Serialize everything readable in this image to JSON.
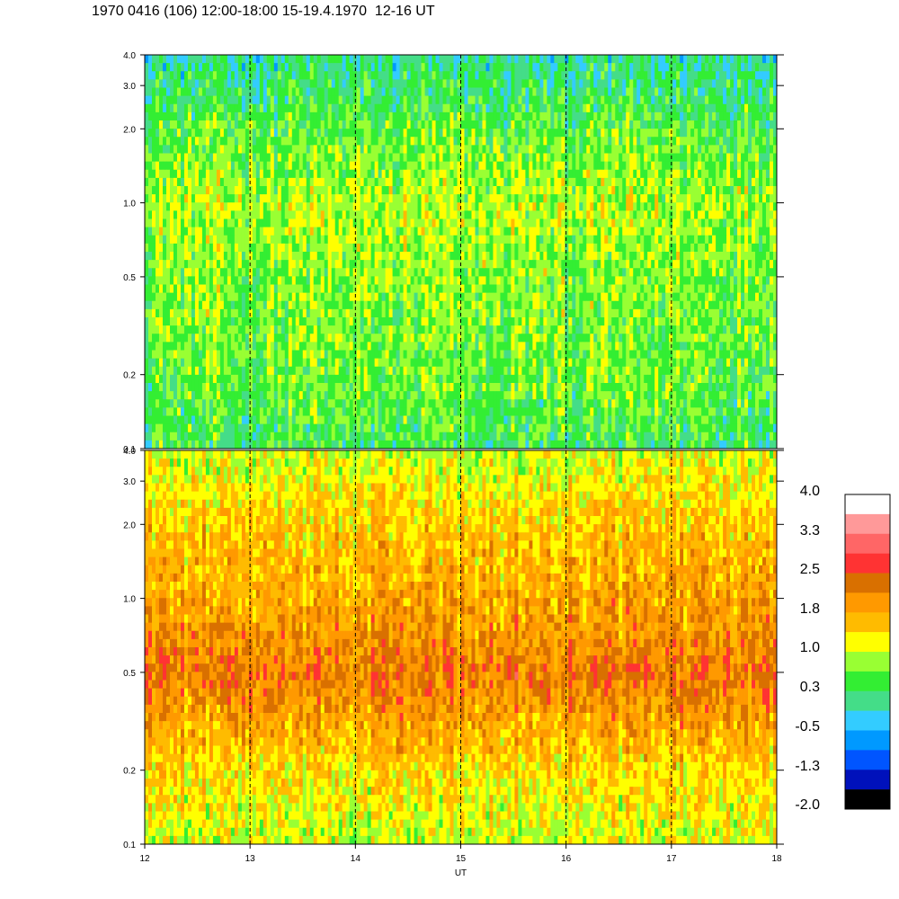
{
  "title": "1970 0416 (106) 12:00-18:00 15-19.4.1970  12-16 UT",
  "chart_data": [
    {
      "type": "heatmap",
      "panel": "top",
      "x": [
        12,
        13,
        14,
        15,
        16,
        17,
        18
      ],
      "x_tick_labels": [
        "12",
        "13",
        "14",
        "15",
        "16",
        "17",
        "18"
      ],
      "xlim": [
        12,
        18
      ],
      "y_scale": "log",
      "ylim": [
        0.1,
        4.0
      ],
      "y_ticks": [
        0.1,
        0.2,
        0.5,
        1.0,
        2.0,
        3.0,
        4.0
      ],
      "y_tick_labels": [
        "0.1",
        "0.2",
        "0.5",
        "1.0",
        "2.0",
        "3.0",
        "4.0"
      ],
      "vertical_dashed_lines": [
        13,
        14,
        15,
        16,
        17
      ],
      "dominant_levels_by_y": [
        {
          "y": 0.1,
          "level": 0.3
        },
        {
          "y": 0.2,
          "level": 0.6
        },
        {
          "y": 0.5,
          "level": 0.7
        },
        {
          "y": 1.0,
          "level": 0.9
        },
        {
          "y": 2.0,
          "level": 0.5
        },
        {
          "y": 4.0,
          "level": 0.0
        }
      ]
    },
    {
      "type": "heatmap",
      "panel": "bottom",
      "x": [
        12,
        13,
        14,
        15,
        16,
        17,
        18
      ],
      "x_tick_labels": [
        "12",
        "13",
        "14",
        "15",
        "16",
        "17",
        "18"
      ],
      "xlabel": "UT",
      "xlim": [
        12,
        18
      ],
      "y_scale": "log",
      "ylim": [
        0.1,
        4.0
      ],
      "y_ticks": [
        0.1,
        0.2,
        0.5,
        1.0,
        2.0,
        3.0,
        4.0
      ],
      "y_tick_labels": [
        "0.1",
        "0.2",
        "0.5",
        "1.0",
        "2.0",
        "3.0",
        "4.0"
      ],
      "vertical_dashed_lines": [
        13,
        14,
        15,
        16,
        17
      ],
      "dominant_levels_by_y": [
        {
          "y": 0.1,
          "level": 1.0
        },
        {
          "y": 0.2,
          "level": 1.4
        },
        {
          "y": 0.3,
          "level": 1.8
        },
        {
          "y": 0.5,
          "level": 2.2
        },
        {
          "y": 1.0,
          "level": 1.8
        },
        {
          "y": 2.0,
          "level": 1.5
        },
        {
          "y": 4.0,
          "level": 1.0
        }
      ]
    }
  ],
  "colorbar": {
    "labels": [
      "4.0",
      "3.3",
      "2.5",
      "1.8",
      "1.0",
      "0.3",
      "-0.5",
      "-1.3",
      "-2.0"
    ],
    "colors_top_to_bottom": [
      "#ffffff",
      "#ff9999",
      "#ff6666",
      "#ff3333",
      "#d97000",
      "#ff9900",
      "#ffbb00",
      "#ffff00",
      "#99ff33",
      "#33ee33",
      "#44dd88",
      "#33ccff",
      "#0099ff",
      "#0055ff",
      "#0011bb",
      "#000000"
    ]
  }
}
